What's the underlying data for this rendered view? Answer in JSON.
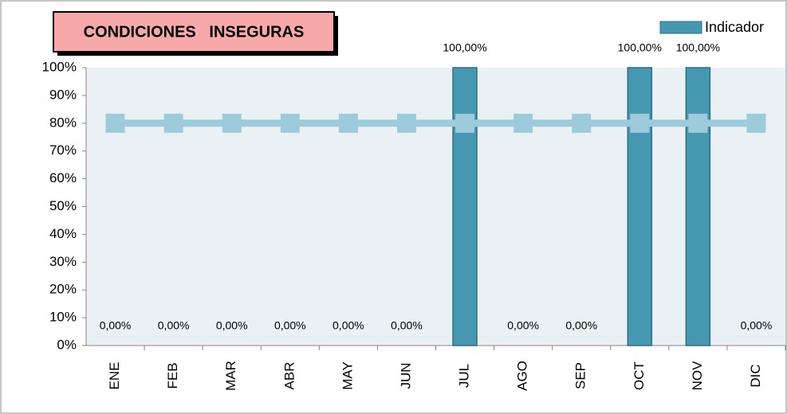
{
  "chart_data": {
    "type": "bar",
    "title": "CONDICIONES   INSEGURAS",
    "categories": [
      "ENE",
      "FEB",
      "MAR",
      "ABR",
      "MAY",
      "JUN",
      "JUL",
      "AGO",
      "SEP",
      "OCT",
      "NOV",
      "DIC"
    ],
    "series": [
      {
        "name": "Indicador",
        "type": "bar",
        "color": "#4697b0",
        "values": [
          0,
          0,
          0,
          0,
          0,
          0,
          100,
          0,
          0,
          100,
          100,
          0
        ],
        "value_labels": [
          "0,00%",
          "0,00%",
          "0,00%",
          "0,00%",
          "0,00%",
          "0,00%",
          "100,00%",
          "0,00%",
          "0,00%",
          "100,00%",
          "100,00%",
          "0,00%"
        ]
      },
      {
        "type": "line",
        "color": "#9ecbdc",
        "values": [
          80,
          80,
          80,
          80,
          80,
          80,
          80,
          80,
          80,
          80,
          80,
          80
        ]
      }
    ],
    "ylim": [
      0,
      100
    ],
    "yticks": [
      {
        "value": 0,
        "label": "0%"
      },
      {
        "value": 10,
        "label": "10%"
      },
      {
        "value": 20,
        "label": "20%"
      },
      {
        "value": 30,
        "label": "30%"
      },
      {
        "value": 40,
        "label": "40%"
      },
      {
        "value": 50,
        "label": "50%"
      },
      {
        "value": 60,
        "label": "60%"
      },
      {
        "value": 70,
        "label": "70%"
      },
      {
        "value": 80,
        "label": "80%"
      },
      {
        "value": 90,
        "label": "90%"
      },
      {
        "value": 100,
        "label": "100%"
      }
    ],
    "legend": "top-right"
  }
}
